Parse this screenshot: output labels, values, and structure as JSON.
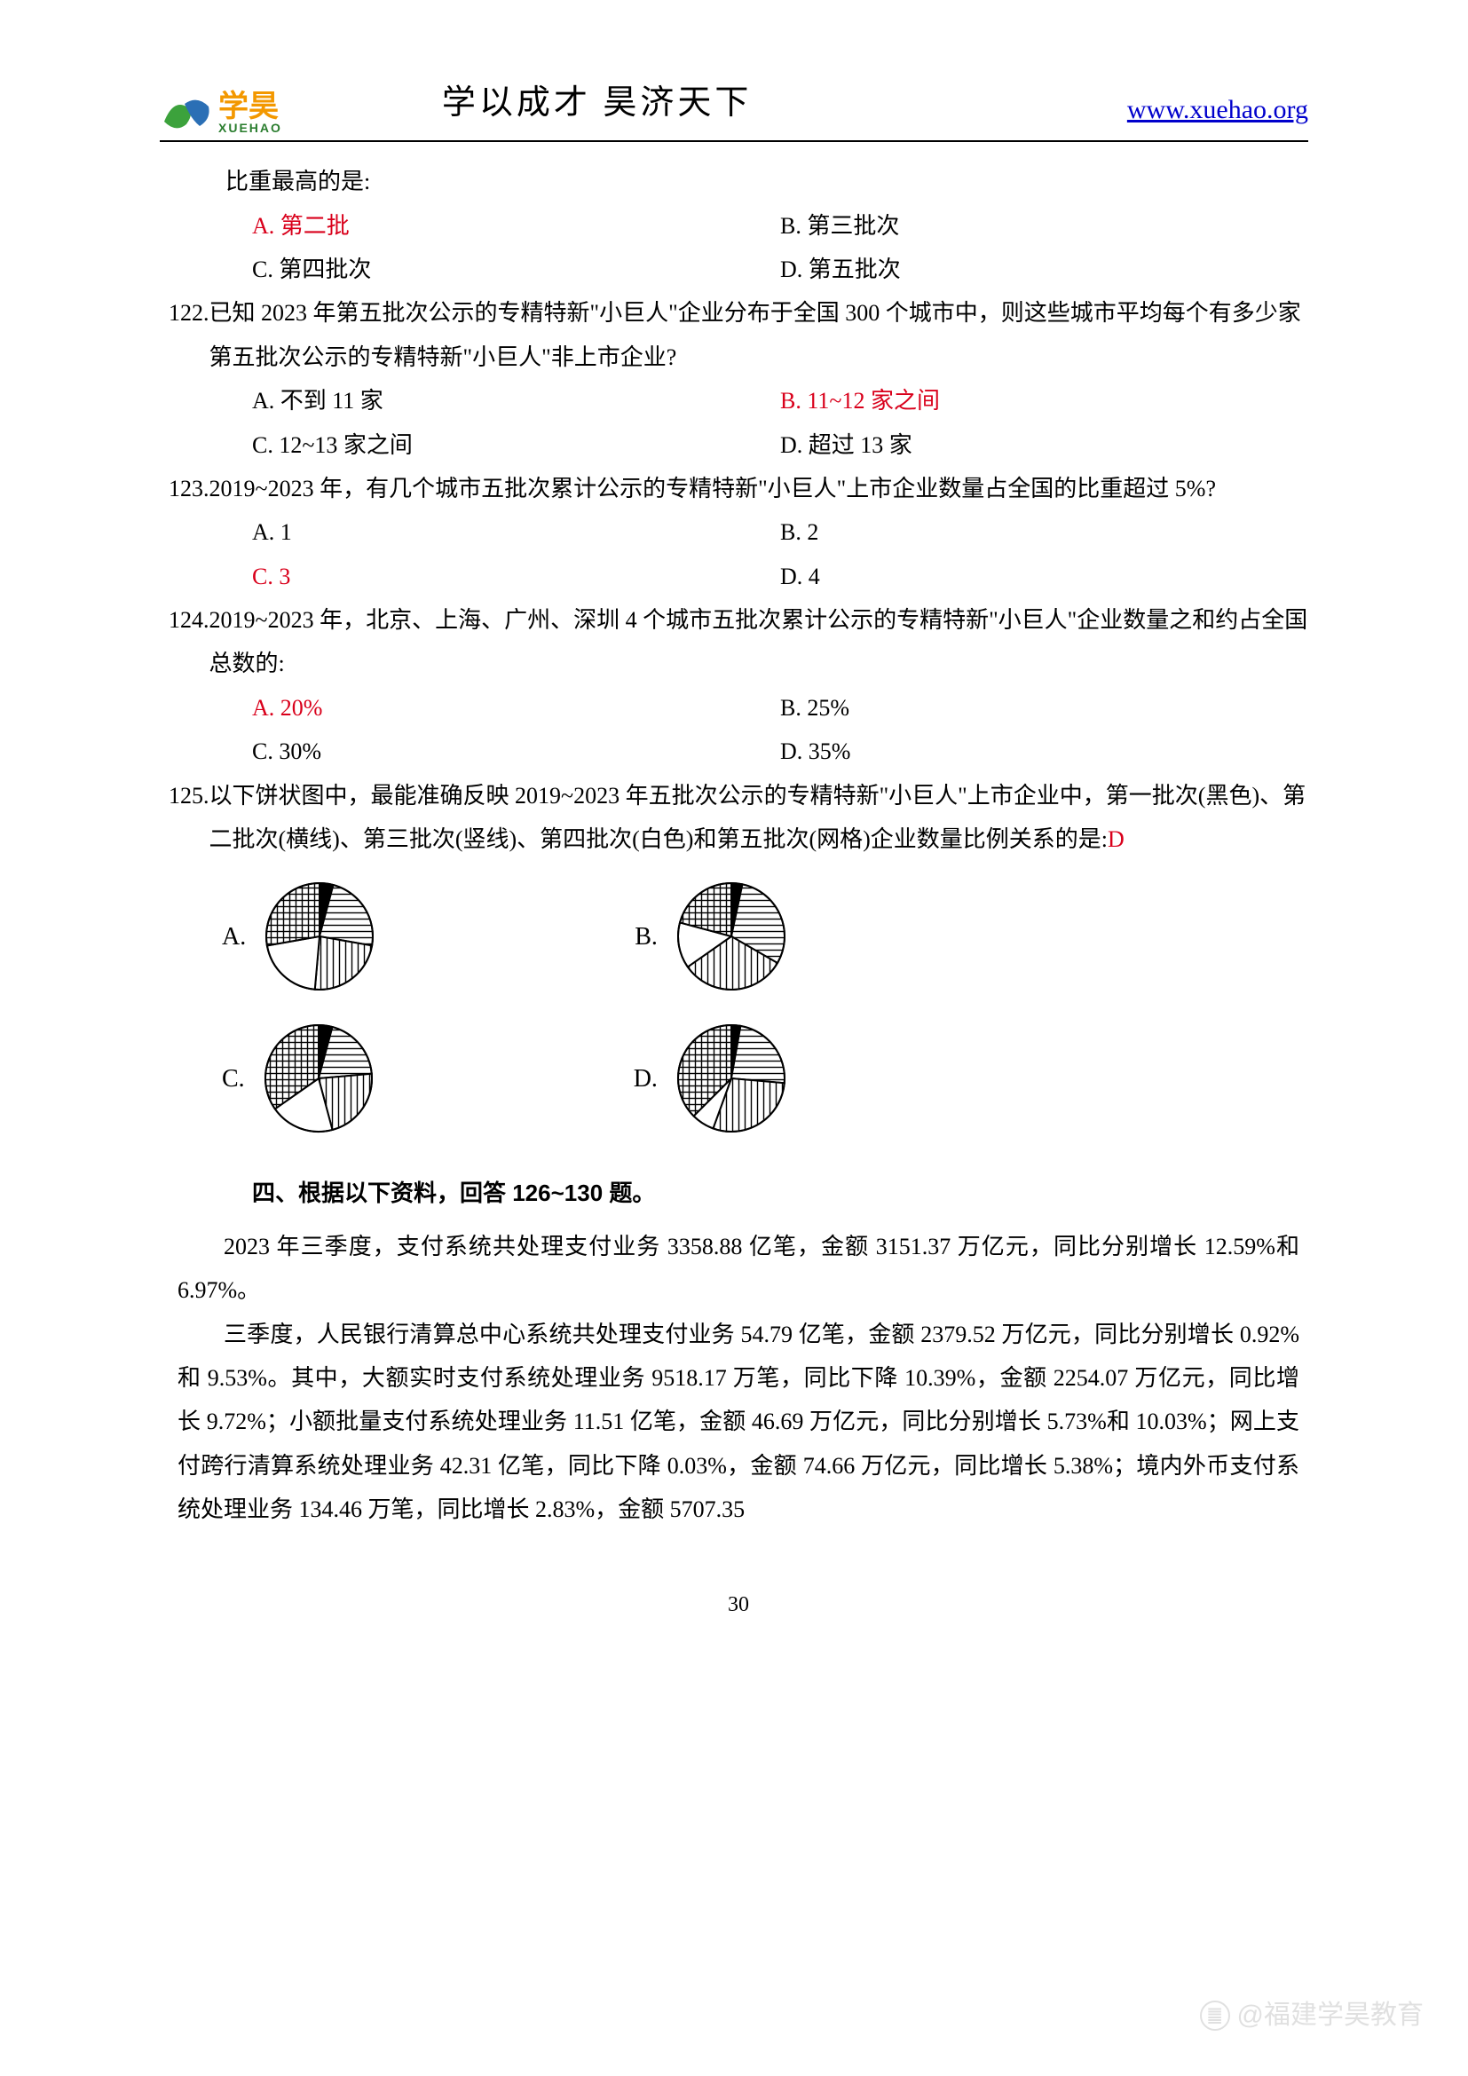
{
  "header": {
    "logo_cn": "学昊",
    "logo_py": "XUEHAO",
    "logo_colors": {
      "green": "#3ca23c",
      "blue": "#2b6fb5",
      "text_orange": "#f39800",
      "text_green": "#2a7d2e"
    },
    "title": "学以成才  昊济天下",
    "url": "www.xuehao.org"
  },
  "continuation_line": "比重最高的是:",
  "q121_choices": {
    "a": "A. 第二批",
    "b": "B. 第三批次",
    "c": "C. 第四批次",
    "d": "D. 第五批次",
    "correct": "A"
  },
  "q122": {
    "num": "122.",
    "text": "已知 2023 年第五批次公示的专精特新\"小巨人\"企业分布于全国 300 个城市中，则这些城市平均每个有多少家第五批次公示的专精特新\"小巨人\"非上市企业?",
    "choices": {
      "a": "A. 不到 11 家",
      "b": "B. 11~12 家之间",
      "c": "C. 12~13 家之间",
      "d": "D. 超过 13 家"
    },
    "correct": "B"
  },
  "q123": {
    "num": "123.",
    "text": "2019~2023 年，有几个城市五批次累计公示的专精特新\"小巨人\"上市企业数量占全国的比重超过 5%?",
    "choices": {
      "a": "A. 1",
      "b": "B. 2",
      "c": "C. 3",
      "d": "D. 4"
    },
    "correct": "C"
  },
  "q124": {
    "num": "124.",
    "text": "2019~2023 年，北京、上海、广州、深圳 4 个城市五批次累计公示的专精特新\"小巨人\"企业数量之和约占全国总数的:",
    "choices": {
      "a": "A. 20%",
      "b": "B. 25%",
      "c": "C. 30%",
      "d": "D. 35%"
    },
    "correct": "A"
  },
  "q125": {
    "num": "125.",
    "text_pre": "以下饼状图中，最能准确反映 2019~2023 年五批次公示的专精特新\"小巨人\"上市企业中，第一批次(黑色)、第二批次(横线)、第三批次(竖线)、第四批次(白色)和第五批次(网格)企业数量比例关系的是:",
    "answer": "D",
    "pies": {
      "A": {
        "slices": [
          {
            "pattern": "black",
            "start": 0,
            "end": 15
          },
          {
            "pattern": "horiz",
            "start": 15,
            "end": 100
          },
          {
            "pattern": "vert",
            "start": 100,
            "end": 185
          },
          {
            "pattern": "white",
            "start": 185,
            "end": 260
          },
          {
            "pattern": "grid",
            "start": 260,
            "end": 360
          }
        ]
      },
      "B": {
        "slices": [
          {
            "pattern": "black",
            "start": 0,
            "end": 12
          },
          {
            "pattern": "horiz",
            "start": 12,
            "end": 120
          },
          {
            "pattern": "vert",
            "start": 120,
            "end": 235
          },
          {
            "pattern": "white",
            "start": 235,
            "end": 285
          },
          {
            "pattern": "grid",
            "start": 285,
            "end": 360
          }
        ]
      },
      "C": {
        "slices": [
          {
            "pattern": "black",
            "start": 0,
            "end": 15
          },
          {
            "pattern": "horiz",
            "start": 15,
            "end": 85
          },
          {
            "pattern": "vert",
            "start": 85,
            "end": 165
          },
          {
            "pattern": "white",
            "start": 165,
            "end": 235
          },
          {
            "pattern": "grid",
            "start": 235,
            "end": 360
          }
        ]
      },
      "D": {
        "slices": [
          {
            "pattern": "black",
            "start": 0,
            "end": 10
          },
          {
            "pattern": "horiz",
            "start": 10,
            "end": 95
          },
          {
            "pattern": "vert",
            "start": 95,
            "end": 200
          },
          {
            "pattern": "white",
            "start": 200,
            "end": 225
          },
          {
            "pattern": "grid",
            "start": 225,
            "end": 360
          }
        ]
      }
    },
    "pie_style": {
      "radius": 60,
      "stroke": "#000000",
      "stroke_width": 2,
      "hatch_spacing": 7,
      "hatch_color": "#000000"
    }
  },
  "section4": {
    "title": "四、根据以下资料，回答 126~130 题。",
    "para1": "2023 年三季度，支付系统共处理支付业务 3358.88 亿笔，金额 3151.37 万亿元，同比分别增长 12.59%和 6.97%。",
    "para2": "三季度，人民银行清算总中心系统共处理支付业务 54.79 亿笔，金额 2379.52 万亿元，同比分别增长 0.92%和 9.53%。其中，大额实时支付系统处理业务 9518.17 万笔，同比下降 10.39%，金额 2254.07 万亿元，同比增长 9.72%；小额批量支付系统处理业务 11.51 亿笔，金额 46.69 万亿元，同比分别增长 5.73%和 10.03%；网上支付跨行清算系统处理业务 42.31 亿笔，同比下降 0.03%，金额 74.66 万亿元，同比增长 5.38%；境内外币支付系统处理业务 134.46 万笔，同比增长 2.83%，金额 5707.35"
  },
  "page_number": "30",
  "watermark": "@福建学昊教育",
  "colors": {
    "text": "#000000",
    "answer_red": "#d9001b",
    "link_blue": "#0000cc",
    "background": "#ffffff"
  },
  "typography": {
    "body_font": "SimSun",
    "body_size_pt": 14,
    "title_font": "KaiTi",
    "title_size_pt": 20
  }
}
